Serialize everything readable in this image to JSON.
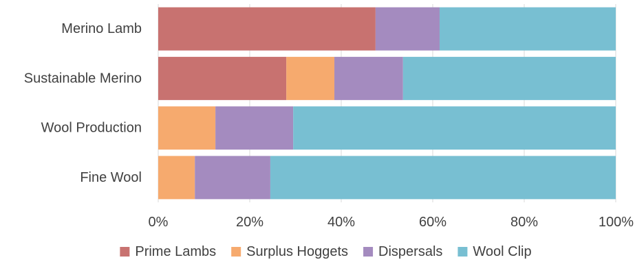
{
  "chart_data": {
    "type": "bar",
    "orientation": "horizontal",
    "stacked": "percent",
    "categories": [
      "Merino Lamb",
      "Sustainable Merino",
      "Wool Production",
      "Fine Wool"
    ],
    "series": [
      {
        "name": "Prime Lambs",
        "color": "#c87270",
        "values": [
          47.5,
          28,
          0,
          0
        ]
      },
      {
        "name": "Surplus Hoggets",
        "color": "#f6aa6e",
        "values": [
          0,
          10.5,
          12.5,
          8
        ]
      },
      {
        "name": "Dispersals",
        "color": "#a48bbf",
        "values": [
          14,
          15,
          17,
          16.5
        ]
      },
      {
        "name": "Wool Clip",
        "color": "#78bfd2",
        "values": [
          38.5,
          46.5,
          70.5,
          75.5
        ]
      }
    ],
    "x_ticks": [
      "0%",
      "20%",
      "40%",
      "60%",
      "80%",
      "100%"
    ],
    "xlim": [
      0,
      100
    ],
    "grid": true,
    "legend_position": "bottom"
  }
}
